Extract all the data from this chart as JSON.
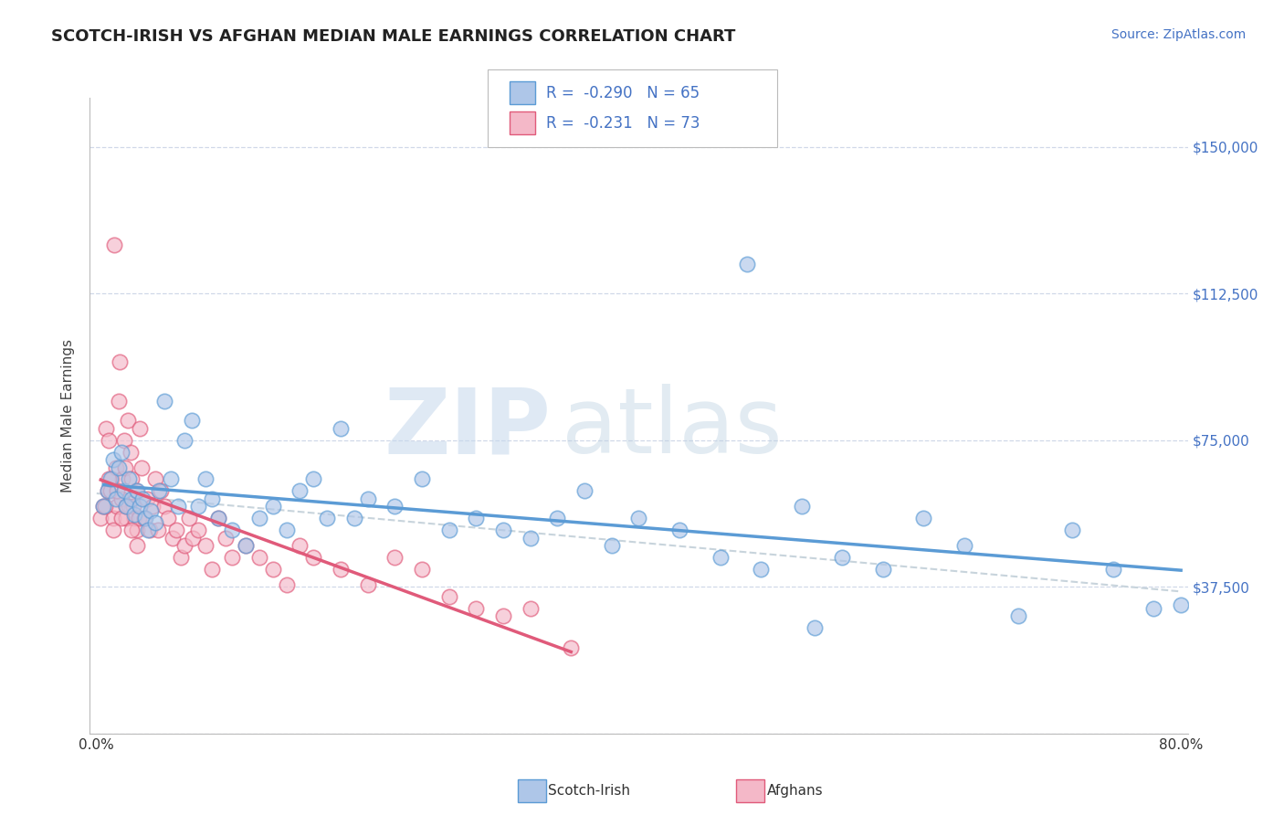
{
  "title": "SCOTCH-IRISH VS AFGHAN MEDIAN MALE EARNINGS CORRELATION CHART",
  "source": "Source: ZipAtlas.com",
  "ylabel": "Median Male Earnings",
  "xlim": [
    -0.005,
    0.805
  ],
  "ylim": [
    0,
    162500
  ],
  "yticks": [
    0,
    37500,
    75000,
    112500,
    150000
  ],
  "ytick_labels": [
    "",
    "$37,500",
    "$75,000",
    "$112,500",
    "$150,000"
  ],
  "xtick_labels": [
    "0.0%",
    "",
    "",
    "",
    "",
    "",
    "",
    "",
    "80.0%"
  ],
  "xtick_vals": [
    0.0,
    0.1,
    0.2,
    0.3,
    0.4,
    0.5,
    0.6,
    0.7,
    0.8
  ],
  "legend_r1": "-0.290",
  "legend_n1": "65",
  "legend_r2": "-0.231",
  "legend_n2": "73",
  "watermark_zip": "ZIP",
  "watermark_atlas": "atlas",
  "si_color_fill": "#aec6e8",
  "si_color_edge": "#5b9bd5",
  "af_color_fill": "#f4b8c8",
  "af_color_edge": "#e05a7a",
  "si_line_color": "#5b9bd5",
  "af_line_color": "#e05a7a",
  "dash_line_color": "#c8d4dc",
  "bg_color": "#ffffff",
  "grid_color": "#d0d8e8",
  "scotch_irish_x": [
    0.005,
    0.008,
    0.01,
    0.012,
    0.014,
    0.016,
    0.018,
    0.02,
    0.022,
    0.024,
    0.026,
    0.028,
    0.03,
    0.032,
    0.034,
    0.036,
    0.038,
    0.04,
    0.043,
    0.046,
    0.05,
    0.055,
    0.06,
    0.065,
    0.07,
    0.075,
    0.08,
    0.085,
    0.09,
    0.1,
    0.11,
    0.12,
    0.13,
    0.14,
    0.15,
    0.16,
    0.17,
    0.18,
    0.19,
    0.2,
    0.22,
    0.24,
    0.26,
    0.28,
    0.3,
    0.32,
    0.34,
    0.36,
    0.38,
    0.4,
    0.43,
    0.46,
    0.49,
    0.52,
    0.55,
    0.58,
    0.61,
    0.64,
    0.68,
    0.72,
    0.75,
    0.78,
    0.8,
    0.48,
    0.53
  ],
  "scotch_irish_y": [
    58000,
    62000,
    65000,
    70000,
    60000,
    68000,
    72000,
    62000,
    58000,
    65000,
    60000,
    56000,
    62000,
    58000,
    60000,
    55000,
    52000,
    57000,
    54000,
    62000,
    85000,
    65000,
    58000,
    75000,
    80000,
    58000,
    65000,
    60000,
    55000,
    52000,
    48000,
    55000,
    58000,
    52000,
    62000,
    65000,
    55000,
    78000,
    55000,
    60000,
    58000,
    65000,
    52000,
    55000,
    52000,
    50000,
    55000,
    62000,
    48000,
    55000,
    52000,
    45000,
    42000,
    58000,
    45000,
    42000,
    55000,
    48000,
    30000,
    52000,
    42000,
    32000,
    33000,
    120000,
    27000
  ],
  "afghan_x": [
    0.003,
    0.005,
    0.007,
    0.008,
    0.009,
    0.01,
    0.011,
    0.012,
    0.013,
    0.014,
    0.015,
    0.016,
    0.017,
    0.018,
    0.019,
    0.02,
    0.021,
    0.022,
    0.023,
    0.024,
    0.025,
    0.026,
    0.027,
    0.028,
    0.029,
    0.03,
    0.031,
    0.032,
    0.033,
    0.035,
    0.037,
    0.039,
    0.041,
    0.043,
    0.045,
    0.047,
    0.05,
    0.053,
    0.056,
    0.059,
    0.062,
    0.065,
    0.068,
    0.071,
    0.075,
    0.08,
    0.085,
    0.09,
    0.095,
    0.1,
    0.11,
    0.12,
    0.13,
    0.14,
    0.15,
    0.16,
    0.18,
    0.2,
    0.22,
    0.24,
    0.26,
    0.28,
    0.3,
    0.32,
    0.35,
    0.006,
    0.009,
    0.012,
    0.015,
    0.018,
    0.022,
    0.026,
    0.03
  ],
  "afghan_y": [
    55000,
    58000,
    78000,
    62000,
    75000,
    62000,
    65000,
    55000,
    125000,
    68000,
    58000,
    85000,
    95000,
    60000,
    65000,
    75000,
    68000,
    55000,
    80000,
    58000,
    72000,
    65000,
    58000,
    55000,
    62000,
    52000,
    55000,
    78000,
    68000,
    55000,
    60000,
    52000,
    58000,
    65000,
    52000,
    62000,
    58000,
    55000,
    50000,
    52000,
    45000,
    48000,
    55000,
    50000,
    52000,
    48000,
    42000,
    55000,
    50000,
    45000,
    48000,
    45000,
    42000,
    38000,
    48000,
    45000,
    42000,
    38000,
    45000,
    42000,
    35000,
    32000,
    30000,
    32000,
    22000,
    58000,
    65000,
    52000,
    62000,
    55000,
    58000,
    52000,
    48000
  ]
}
